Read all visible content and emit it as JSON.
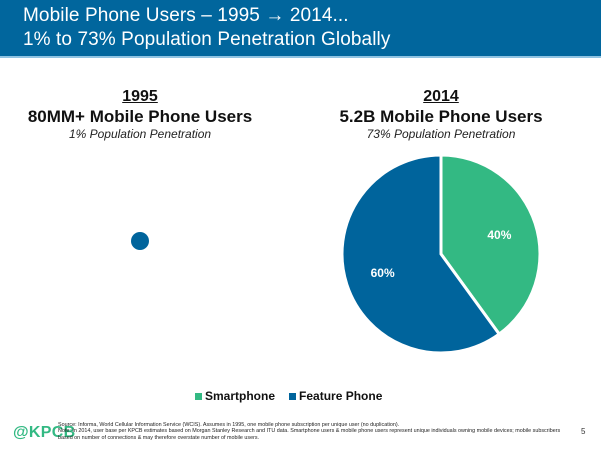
{
  "header": {
    "title_line1": "Mobile Phone Users – 1995 → 2014...",
    "title_line2": "1% to 73% Population Penetration Globally"
  },
  "panels": [
    {
      "year": "1995",
      "users": "80MM+ Mobile Phone Users",
      "penetration": "1% Population Penetration"
    },
    {
      "year": "2014",
      "users": "5.2B Mobile Phone Users",
      "penetration": "73% Population Penetration"
    }
  ],
  "colors": {
    "header_bg": "#01669D",
    "smartphone": "#33B983",
    "feature_phone": "#00649C"
  },
  "chart_data": [
    {
      "type": "pie",
      "title": "1995",
      "description": "Single small circle representing 80MM+ users (no split shown)",
      "series": [
        {
          "name": "Feature Phone",
          "value": 100,
          "label": ""
        }
      ]
    },
    {
      "type": "pie",
      "title": "2014",
      "start": "top",
      "direction": "clockwise",
      "series": [
        {
          "name": "Smartphone",
          "value": 40,
          "label": "40%"
        },
        {
          "name": "Feature Phone",
          "value": 60,
          "label": "60%"
        }
      ],
      "legend": {
        "position": "bottom",
        "entries": [
          "Smartphone",
          "Feature Phone"
        ]
      }
    }
  ],
  "legend": {
    "items": [
      {
        "label": "Smartphone"
      },
      {
        "label": "Feature Phone"
      }
    ]
  },
  "footer": {
    "logo": "@KPCB",
    "source": "Source: Informa, World Cellular Information Service (WCIS). Assumes in 1995, one mobile phone subscription per unique user (no duplication).",
    "note": "Note: In 2014, user base per KPCB estimates based on Morgan Stanley Research and ITU data. Smartphone users & mobile phone users represent unique individuals owning mobile devices; mobile subscribers based on number of connections & may therefore overstate number of mobile users.",
    "page_number": "5"
  }
}
